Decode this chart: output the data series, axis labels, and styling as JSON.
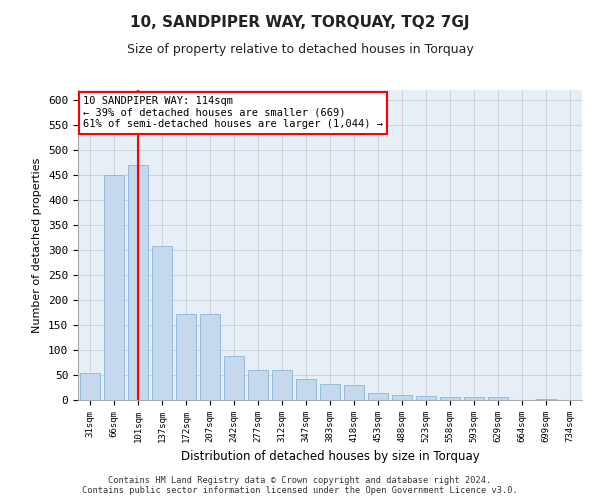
{
  "title": "10, SANDPIPER WAY, TORQUAY, TQ2 7GJ",
  "subtitle": "Size of property relative to detached houses in Torquay",
  "xlabel": "Distribution of detached houses by size in Torquay",
  "ylabel": "Number of detached properties",
  "categories": [
    "31sqm",
    "66sqm",
    "101sqm",
    "137sqm",
    "172sqm",
    "207sqm",
    "242sqm",
    "277sqm",
    "312sqm",
    "347sqm",
    "383sqm",
    "418sqm",
    "453sqm",
    "488sqm",
    "523sqm",
    "558sqm",
    "593sqm",
    "629sqm",
    "664sqm",
    "699sqm",
    "734sqm"
  ],
  "values": [
    55,
    450,
    470,
    308,
    173,
    172,
    88,
    60,
    60,
    42,
    32,
    31,
    15,
    10,
    8,
    7,
    6,
    6,
    1,
    2,
    1
  ],
  "bar_color": "#c5d8ed",
  "bar_edge_color": "#7aafd4",
  "grid_color": "#c0c8d8",
  "background_color": "#e8eef5",
  "annotation_box_text": "10 SANDPIPER WAY: 114sqm\n← 39% of detached houses are smaller (669)\n61% of semi-detached houses are larger (1,044) →",
  "red_line_index": 2,
  "ylim": [
    0,
    620
  ],
  "yticks": [
    0,
    50,
    100,
    150,
    200,
    250,
    300,
    350,
    400,
    450,
    500,
    550,
    600
  ],
  "footer_line1": "Contains HM Land Registry data © Crown copyright and database right 2024.",
  "footer_line2": "Contains public sector information licensed under the Open Government Licence v3.0."
}
